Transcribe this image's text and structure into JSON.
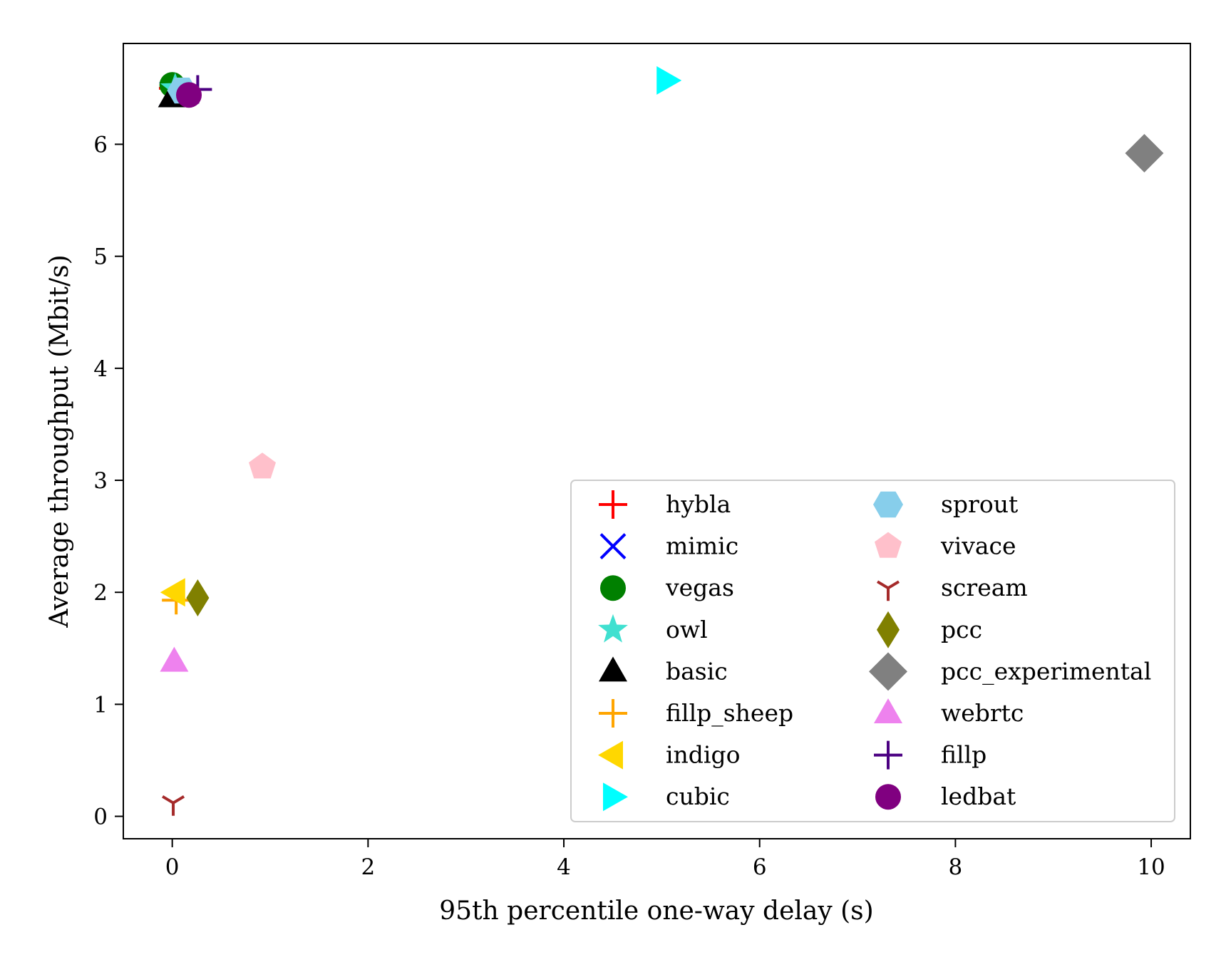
{
  "chart_data": {
    "type": "scatter",
    "title": "",
    "xlabel": "95th percentile one-way delay (s)",
    "ylabel": "Average throughput (Mbit/s)",
    "xlim": [
      -0.5,
      10.4
    ],
    "ylim": [
      -0.2,
      6.9
    ],
    "x_ticks": [
      0,
      2,
      4,
      6,
      8,
      10
    ],
    "y_ticks": [
      0,
      1,
      2,
      3,
      4,
      5,
      6
    ],
    "grid": false,
    "legend_position": "lower-right",
    "legend_columns": 2,
    "series": [
      {
        "name": "hybla",
        "marker": "plus",
        "color": "#ff0000",
        "x": 0.01,
        "y": 6.5
      },
      {
        "name": "mimic",
        "marker": "x",
        "color": "#0000ff",
        "x": 0.0,
        "y": 6.45
      },
      {
        "name": "vegas",
        "marker": "circle",
        "color": "#008000",
        "x": 0.0,
        "y": 6.53
      },
      {
        "name": "owl",
        "marker": "star",
        "color": "#40e0d0",
        "x": 0.03,
        "y": 6.5
      },
      {
        "name": "basic",
        "marker": "triangle-up",
        "color": "#000000",
        "x": 0.0,
        "y": 6.42
      },
      {
        "name": "fillp_sheep",
        "marker": "plus",
        "color": "#ffa500",
        "x": 0.04,
        "y": 1.93
      },
      {
        "name": "indigo",
        "marker": "triangle-left",
        "color": "#ffd700",
        "x": 0.03,
        "y": 2.0
      },
      {
        "name": "cubic",
        "marker": "triangle-right",
        "color": "#00ffff",
        "x": 5.05,
        "y": 6.57
      },
      {
        "name": "sprout",
        "marker": "hexagon",
        "color": "#87ceeb",
        "x": 0.1,
        "y": 6.48
      },
      {
        "name": "vivace",
        "marker": "pentagon",
        "color": "#ffc0cb",
        "x": 0.92,
        "y": 3.12
      },
      {
        "name": "scream",
        "marker": "tri-down",
        "color": "#a52a2a",
        "x": 0.01,
        "y": 0.12
      },
      {
        "name": "pcc",
        "marker": "thin-diamond",
        "color": "#808000",
        "x": 0.26,
        "y": 1.95
      },
      {
        "name": "pcc_experimental",
        "marker": "diamond",
        "color": "#808080",
        "x": 9.93,
        "y": 5.92
      },
      {
        "name": "webrtc",
        "marker": "triangle-up",
        "color": "#ee82ee",
        "x": 0.02,
        "y": 1.38
      },
      {
        "name": "fillp",
        "marker": "plus",
        "color": "#4b0082",
        "x": 0.26,
        "y": 6.49
      },
      {
        "name": "ledbat",
        "marker": "circle",
        "color": "#800080",
        "x": 0.17,
        "y": 6.44
      }
    ]
  }
}
